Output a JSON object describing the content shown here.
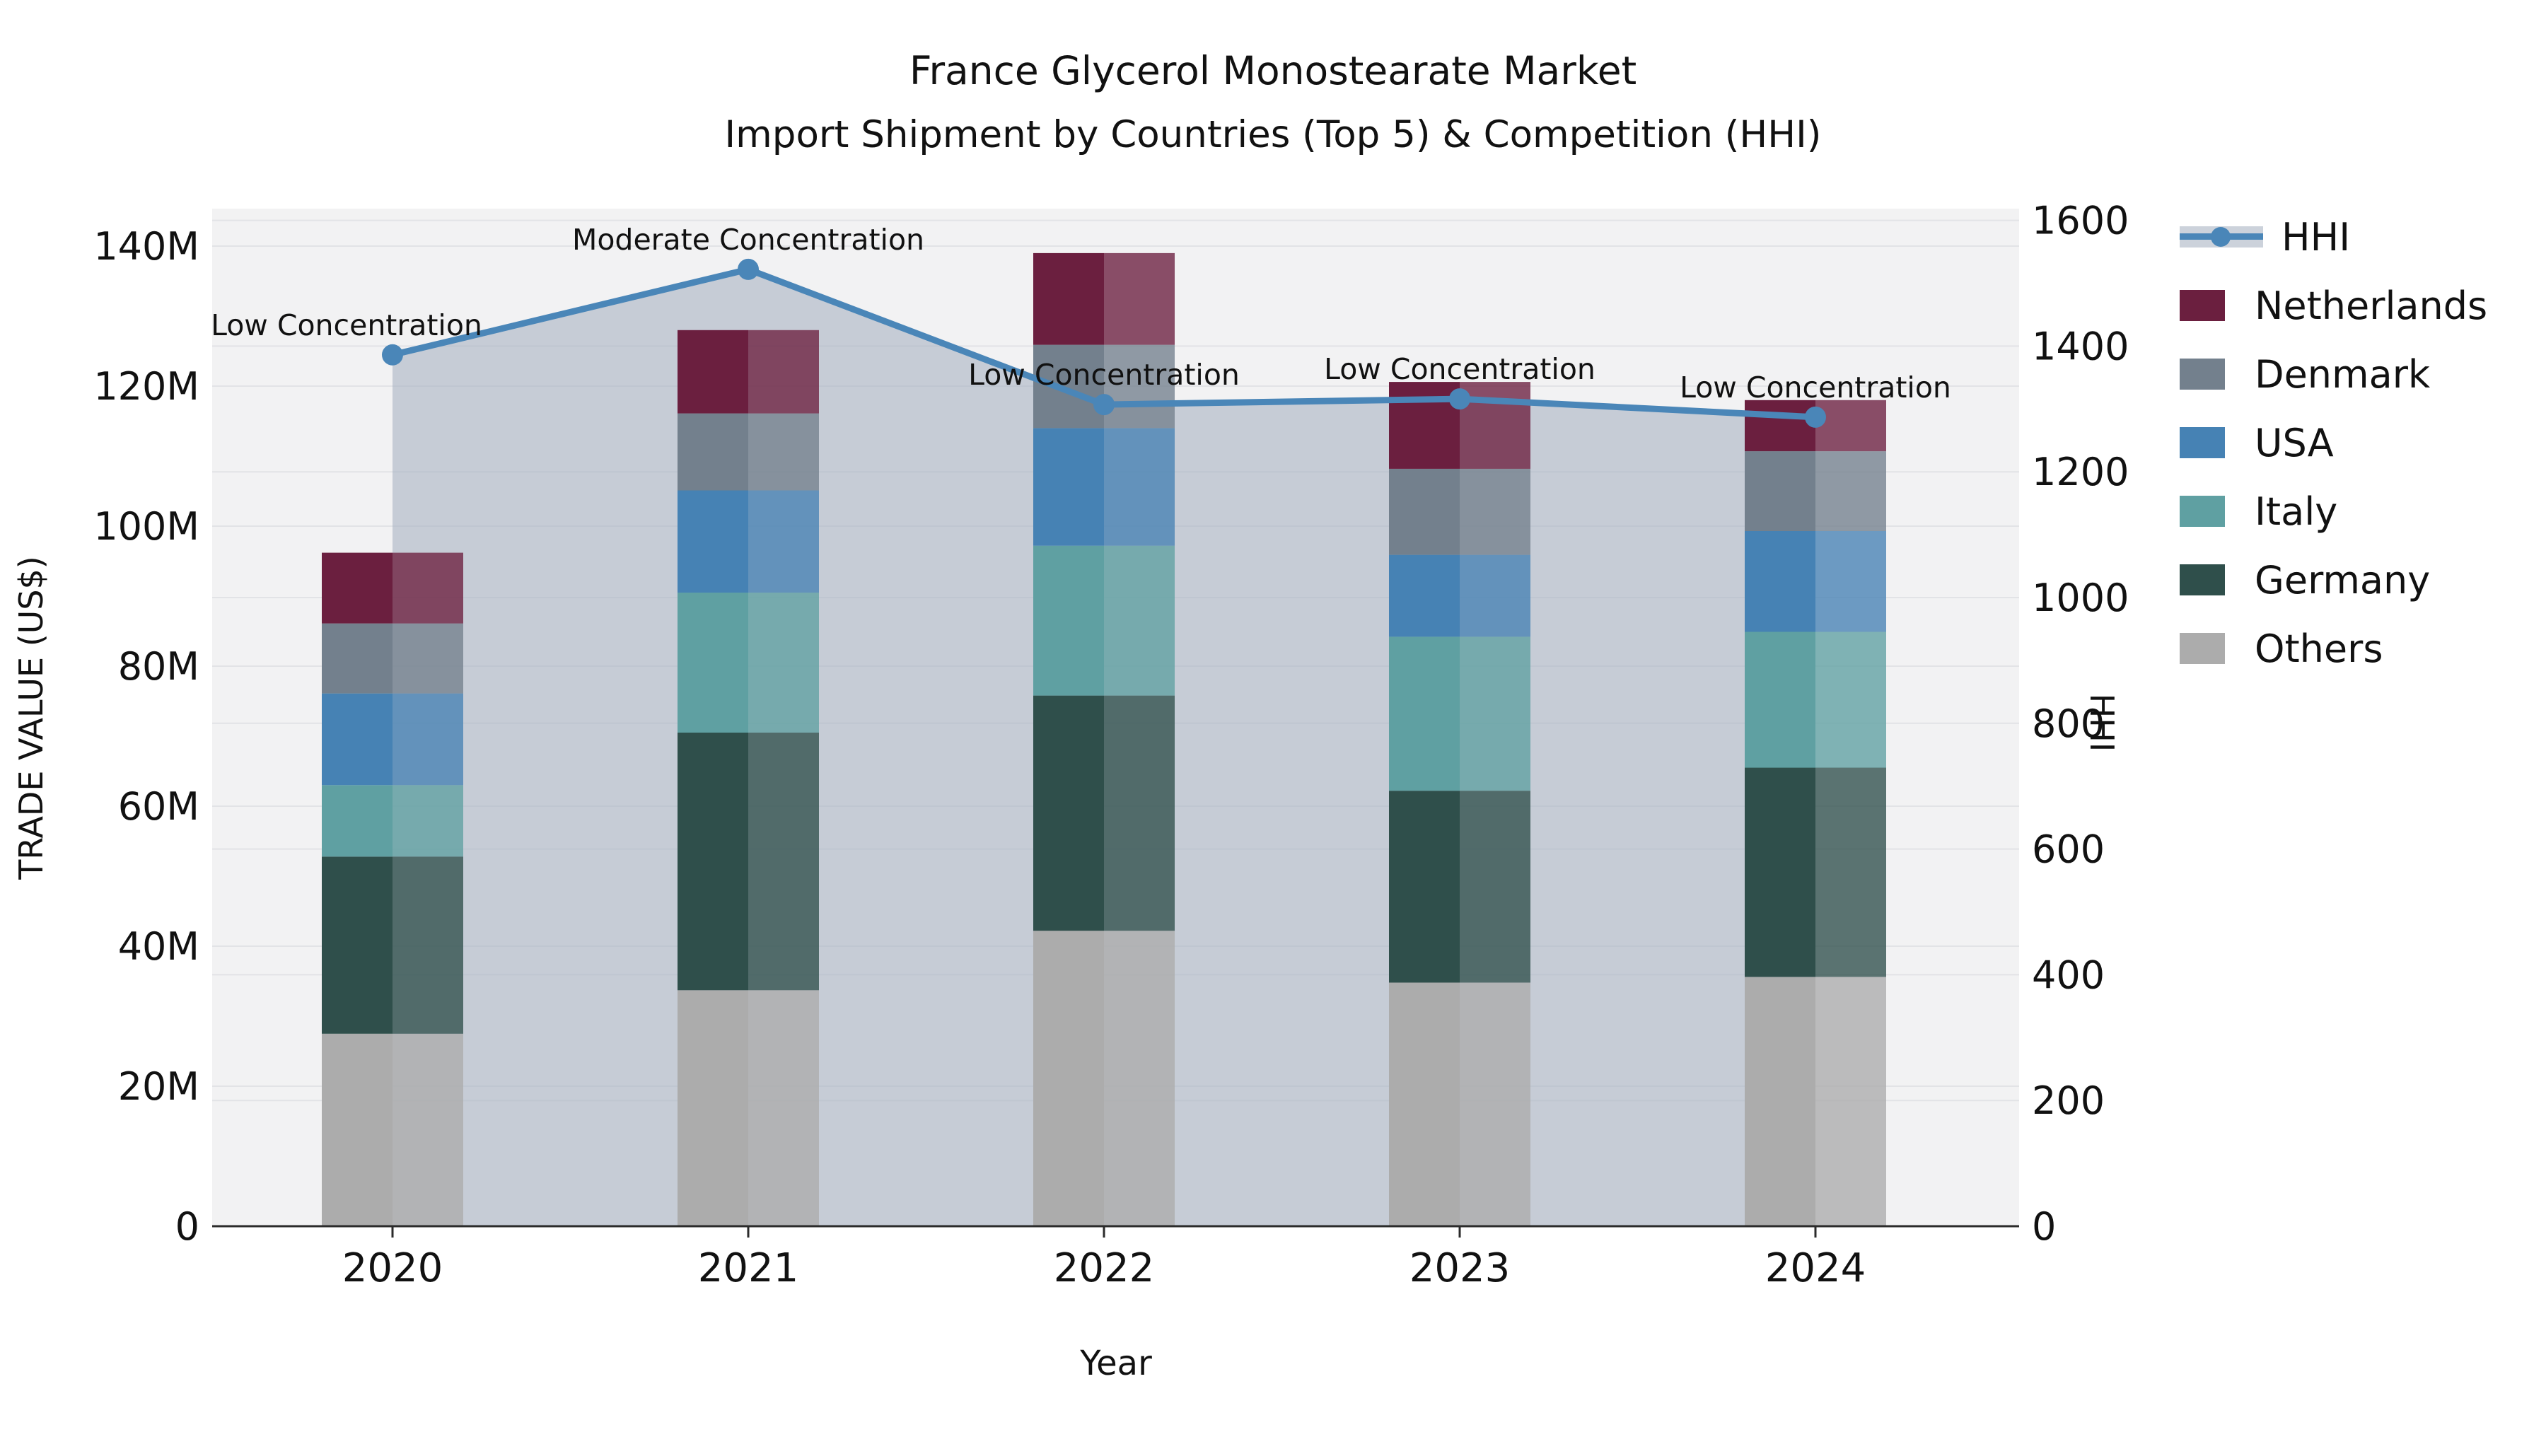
{
  "title_line1": "France Glycerol Monostearate Market",
  "title_line2": "Import Shipment by Countries (Top 5) & Competition (HHI)",
  "chart_data": {
    "type": "bar",
    "subtype": "stacked-bars-with-line-and-area",
    "title": "France Glycerol Monostearate Market",
    "subtitle": "Import Shipment by Countries (Top 5) & Competition (HHI)",
    "xlabel": "Year",
    "ylabel_left": "TRADE VALUE (US$)",
    "ylabel_right": "HHI",
    "categories": [
      "2020",
      "2021",
      "2022",
      "2023",
      "2024"
    ],
    "value_unit": "USD millions",
    "series": [
      {
        "name": "Others",
        "color": "#ACACAC",
        "values": [
          27.5,
          33.7,
          42.2,
          34.8,
          35.6
        ]
      },
      {
        "name": "Germany",
        "color": "#2F4F4B",
        "values": [
          25.3,
          36.8,
          33.6,
          27.4,
          29.9
        ]
      },
      {
        "name": "Italy",
        "color": "#5FA0A2",
        "values": [
          10.2,
          20.0,
          21.4,
          22.0,
          19.4
        ]
      },
      {
        "name": "USA",
        "color": "#4682B4",
        "values": [
          13.1,
          14.6,
          16.8,
          11.7,
          14.4
        ]
      },
      {
        "name": "Denmark",
        "color": "#73808D",
        "values": [
          10.0,
          11.0,
          11.9,
          12.3,
          11.4
        ]
      },
      {
        "name": "Netherlands",
        "color": "#6B1F3F",
        "values": [
          10.1,
          11.9,
          13.1,
          12.4,
          7.3
        ]
      }
    ],
    "line_series": {
      "name": "HHI",
      "color": "#4A86B8",
      "values": [
        1386,
        1522,
        1307,
        1316,
        1287
      ]
    },
    "annotations": [
      {
        "year": "2020",
        "text": "Low Concentration"
      },
      {
        "year": "2021",
        "text": "Moderate Concentration"
      },
      {
        "year": "2022",
        "text": "Low Concentration"
      },
      {
        "year": "2023",
        "text": "Low Concentration"
      },
      {
        "year": "2024",
        "text": "Low Concentration"
      }
    ],
    "y_left_axis": {
      "min": 0,
      "max": 140,
      "tick_labels": [
        "0",
        "20M",
        "40M",
        "60M",
        "80M",
        "100M",
        "120M",
        "140M"
      ]
    },
    "y_right_axis": {
      "min": 0,
      "max": 1600,
      "tick_labels": [
        "0",
        "200",
        "400",
        "600",
        "800",
        "1000",
        "1200",
        "1400",
        "1600"
      ]
    },
    "legend_position": "right",
    "grid": true,
    "legend": [
      {
        "label": "HHI",
        "type": "line",
        "color": "#4A86B8"
      },
      {
        "label": "Netherlands",
        "type": "patch",
        "color": "#6B1F3F"
      },
      {
        "label": "Denmark",
        "type": "patch",
        "color": "#73808D"
      },
      {
        "label": "USA",
        "type": "patch",
        "color": "#4682B4"
      },
      {
        "label": "Italy",
        "type": "patch",
        "color": "#5FA0A2"
      },
      {
        "label": "Germany",
        "type": "patch",
        "color": "#2F4F4B"
      },
      {
        "label": "Others",
        "type": "patch",
        "color": "#ACACAC"
      }
    ],
    "style": {
      "plot_bg": "#f2f2f3",
      "grid_color": "#e2e3e6",
      "area_fill": "rgba(168,178,195,0.60)",
      "axis_line_color": "#2b2b2b",
      "text_color": "#111111",
      "muted_half_opacity": 0.78
    }
  }
}
